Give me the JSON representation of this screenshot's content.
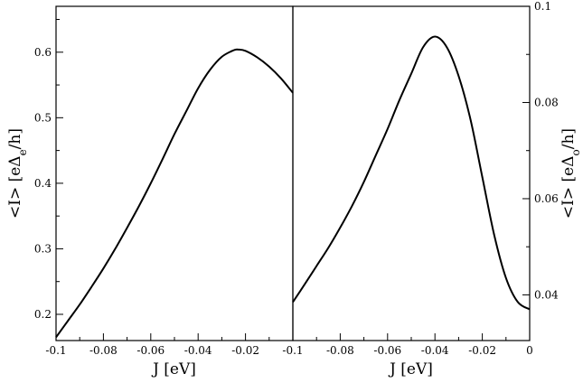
{
  "chart_data": [
    {
      "type": "line",
      "panel": "left",
      "xlabel": "J [eV]",
      "ylabel": "<I> [eΔe/h]",
      "ylabel_parts": {
        "main": "<I> [eΔ",
        "sub": "e",
        "tail": "/h]"
      },
      "xlim": [
        -0.1,
        0.0
      ],
      "ylim": [
        0.16,
        0.67
      ],
      "x_ticks": [
        -0.1,
        -0.08,
        -0.06,
        -0.04,
        -0.02
      ],
      "x_tick_labels": [
        "-0.1",
        "-0.08",
        "-0.06",
        "-0.04",
        "-0.02"
      ],
      "y_ticks": [
        0.2,
        0.3,
        0.4,
        0.5,
        0.6
      ],
      "y_tick_labels": [
        "0.2",
        "0.3",
        "0.4",
        "0.5",
        "0.6"
      ],
      "series": [
        {
          "x": [
            -0.1,
            -0.095,
            -0.09,
            -0.085,
            -0.08,
            -0.075,
            -0.07,
            -0.065,
            -0.06,
            -0.055,
            -0.05,
            -0.045,
            -0.04,
            -0.035,
            -0.03,
            -0.025,
            -0.023,
            -0.02,
            -0.015,
            -0.01,
            -0.005,
            0.0
          ],
          "y": [
            0.165,
            0.19,
            0.215,
            0.242,
            0.27,
            0.3,
            0.332,
            0.365,
            0.4,
            0.437,
            0.475,
            0.51,
            0.545,
            0.573,
            0.593,
            0.603,
            0.604,
            0.602,
            0.592,
            0.578,
            0.56,
            0.538
          ]
        }
      ]
    },
    {
      "type": "line",
      "panel": "right",
      "xlabel": "J [eV]",
      "ylabel": "<I> [eΔo/h]",
      "ylabel_parts": {
        "main": "<I> [eΔ",
        "sub": "o",
        "tail": "/h]"
      },
      "xlim": [
        -0.1,
        0.0
      ],
      "ylim": [
        0.0305,
        0.1
      ],
      "x_ticks": [
        -0.1,
        -0.08,
        -0.06,
        -0.04,
        -0.02,
        0.0
      ],
      "x_tick_labels": [
        "-0.1",
        "-0.08",
        "-0.06",
        "-0.04",
        "-0.02",
        "0"
      ],
      "y_ticks": [
        0.04,
        0.06,
        0.08,
        0.1
      ],
      "y_tick_labels": [
        "0.04",
        "0.06",
        "0.08",
        "0.1"
      ],
      "series": [
        {
          "x": [
            -0.1,
            -0.095,
            -0.09,
            -0.085,
            -0.08,
            -0.075,
            -0.07,
            -0.065,
            -0.06,
            -0.055,
            -0.05,
            -0.045,
            -0.04,
            -0.035,
            -0.03,
            -0.025,
            -0.02,
            -0.015,
            -0.01,
            -0.005,
            0.0
          ],
          "y": [
            0.0385,
            0.0422,
            0.046,
            0.0498,
            0.054,
            0.0585,
            0.0635,
            0.069,
            0.0745,
            0.0805,
            0.086,
            0.0915,
            0.0937,
            0.0915,
            0.0855,
            0.0765,
            0.0645,
            0.0525,
            0.0435,
            0.0385,
            0.037
          ]
        }
      ]
    }
  ]
}
